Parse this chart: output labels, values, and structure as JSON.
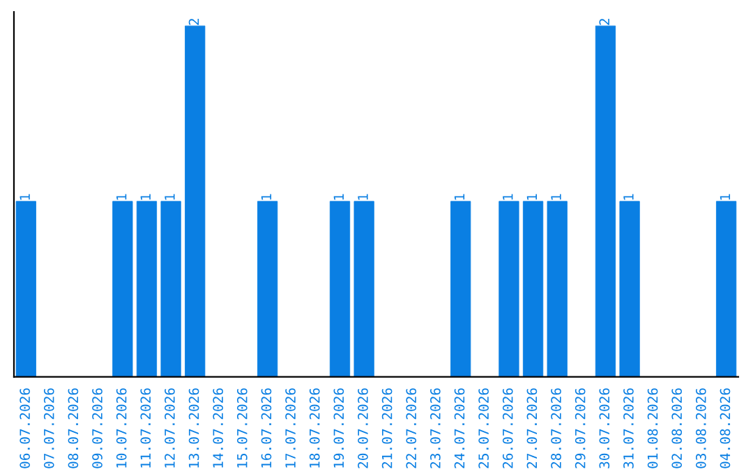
{
  "chart_data": {
    "type": "bar",
    "categories": [
      "06.07.2026",
      "07.07.2026",
      "08.07.2026",
      "09.07.2026",
      "10.07.2026",
      "11.07.2026",
      "12.07.2026",
      "13.07.2026",
      "14.07.2026",
      "15.07.2026",
      "16.07.2026",
      "17.07.2026",
      "18.07.2026",
      "19.07.2026",
      "20.07.2026",
      "21.07.2026",
      "22.07.2026",
      "23.07.2026",
      "24.07.2026",
      "25.07.2026",
      "26.07.2026",
      "27.07.2026",
      "28.07.2026",
      "29.07.2026",
      "30.07.2026",
      "31.07.2026",
      "01.08.2026",
      "02.08.2026",
      "03.08.2026",
      "04.08.2026"
    ],
    "values": [
      1,
      0,
      0,
      0,
      1,
      1,
      1,
      2,
      0,
      0,
      1,
      0,
      0,
      1,
      1,
      0,
      0,
      0,
      1,
      0,
      1,
      1,
      1,
      0,
      2,
      1,
      0,
      0,
      0,
      1
    ],
    "value_labels": [
      "1",
      null,
      null,
      null,
      "1",
      "1",
      "1",
      "2",
      null,
      null,
      "1",
      null,
      null,
      "1",
      "1",
      null,
      null,
      null,
      "1",
      null,
      "1",
      "1",
      "1",
      null,
      "2",
      "1",
      null,
      null,
      null,
      "1"
    ],
    "color": "#0a7fe3",
    "tick_labels": "x",
    "grid": false,
    "legend": false
  }
}
